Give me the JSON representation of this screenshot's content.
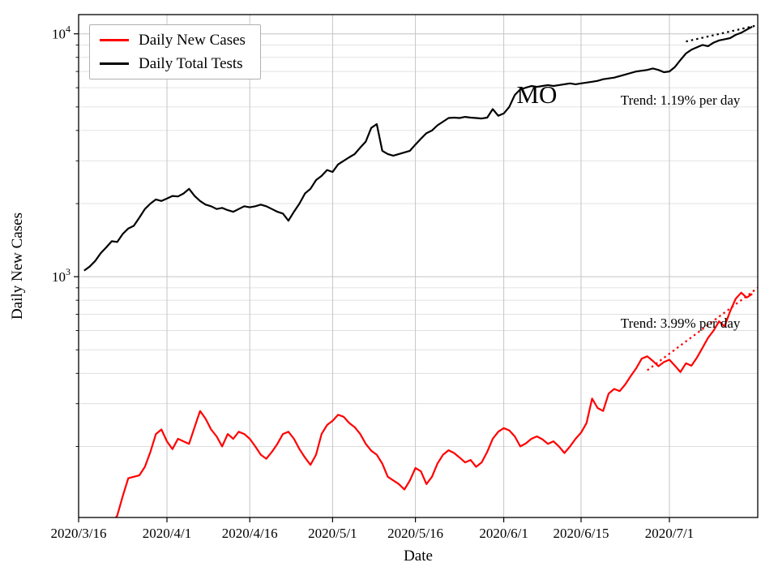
{
  "figure": {
    "xlabel": "Date",
    "ylabel": "Daily New Cases"
  },
  "legend": {
    "items": [
      {
        "label": "Daily New Cases",
        "color": "#ff0000"
      },
      {
        "label": "Daily Total Tests",
        "color": "#000000"
      }
    ]
  },
  "annotations": [
    {
      "name": "state-label",
      "text": "MO",
      "day": 83,
      "value": 5600,
      "font_size": 31
    },
    {
      "name": "trend-tests",
      "text": "Trend: 1.19% per day",
      "day": 109,
      "value": 5300,
      "font_size": 17
    },
    {
      "name": "trend-cases",
      "text": "Trend: 3.99% per day",
      "day": 109,
      "value": 640,
      "font_size": 17
    }
  ],
  "chart_data": {
    "type": "line",
    "title": "",
    "xlabel": "Date",
    "ylabel": "Daily New Cases",
    "x_axis": {
      "unit": "days since 2020/3/16",
      "min": 0,
      "max": 123,
      "ticks": [
        {
          "day": 0,
          "label": "2020/3/16"
        },
        {
          "day": 16,
          "label": "2020/4/1"
        },
        {
          "day": 31,
          "label": "2020/4/16"
        },
        {
          "day": 46,
          "label": "2020/5/1"
        },
        {
          "day": 61,
          "label": "2020/5/16"
        },
        {
          "day": 77,
          "label": "2020/6/1"
        },
        {
          "day": 91,
          "label": "2020/6/15"
        },
        {
          "day": 107,
          "label": "2020/7/1"
        }
      ]
    },
    "y_axis": {
      "scale": "log",
      "min": 102,
      "max": 12000,
      "major_ticks": [
        {
          "value": 1000,
          "exp": 3
        },
        {
          "value": 10000,
          "exp": 4
        }
      ]
    },
    "grid": {
      "major_color": "#c4c4c4",
      "minor_color": "#d9d9d9"
    },
    "series": [
      {
        "name": "Daily New Cases",
        "color": "#ff0000",
        "width": 2.2,
        "start_day": 4,
        "values": [
          85,
          90,
          96,
          104,
          125,
          148,
          150,
          152,
          165,
          190,
          225,
          235,
          210,
          195,
          215,
          210,
          205,
          240,
          280,
          260,
          235,
          220,
          200,
          225,
          215,
          230,
          225,
          215,
          200,
          185,
          178,
          190,
          205,
          225,
          230,
          215,
          195,
          180,
          168,
          185,
          225,
          245,
          255,
          270,
          265,
          250,
          240,
          225,
          205,
          192,
          185,
          170,
          150,
          145,
          140,
          133,
          145,
          163,
          158,
          140,
          150,
          170,
          185,
          193,
          188,
          180,
          172,
          176,
          165,
          172,
          190,
          215,
          230,
          238,
          233,
          220,
          200,
          206,
          215,
          220,
          214,
          205,
          210,
          200,
          188,
          200,
          215,
          228,
          250,
          315,
          288,
          280,
          330,
          345,
          338,
          360,
          390,
          420,
          460,
          470,
          450,
          428,
          445,
          455,
          430,
          405,
          440,
          430,
          465,
          510,
          560,
          600,
          655,
          625,
          720,
          810,
          860,
          820,
          850
        ]
      },
      {
        "name": "Daily Total Tests",
        "color": "#000000",
        "width": 2.2,
        "start_day": 1,
        "values": [
          1060,
          1100,
          1160,
          1250,
          1320,
          1400,
          1390,
          1500,
          1580,
          1620,
          1750,
          1900,
          2000,
          2080,
          2050,
          2100,
          2150,
          2140,
          2200,
          2300,
          2150,
          2050,
          1980,
          1950,
          1900,
          1920,
          1880,
          1850,
          1900,
          1950,
          1930,
          1950,
          1980,
          1950,
          1900,
          1850,
          1820,
          1700,
          1850,
          2000,
          2200,
          2300,
          2500,
          2600,
          2750,
          2700,
          2900,
          3000,
          3100,
          3200,
          3400,
          3600,
          4100,
          4250,
          3300,
          3200,
          3150,
          3200,
          3250,
          3300,
          3500,
          3700,
          3900,
          4000,
          4200,
          4350,
          4500,
          4520,
          4500,
          4550,
          4520,
          4500,
          4480,
          4520,
          4900,
          4600,
          4700,
          5000,
          5600,
          5900,
          6000,
          6100,
          6050,
          6100,
          6150,
          6100,
          6150,
          6200,
          6250,
          6200,
          6250,
          6300,
          6350,
          6400,
          6500,
          6550,
          6600,
          6700,
          6800,
          6900,
          7000,
          7050,
          7100,
          7200,
          7100,
          6950,
          7000,
          7300,
          7800,
          8300,
          8600,
          8800,
          9000,
          8900,
          9200,
          9400,
          9500,
          9600,
          9900,
          10100,
          10400,
          10700
        ]
      }
    ],
    "trend_lines": [
      {
        "name": "Daily Total Tests trend",
        "label": "Trend: 1.19% per day",
        "rate_pct_per_day": 1.19,
        "color": "#000000",
        "points": [
          [
            110,
            9300
          ],
          [
            123,
            10850
          ]
        ]
      },
      {
        "name": "Daily New Cases trend",
        "label": "Trend: 3.99% per day",
        "rate_pct_per_day": 3.99,
        "color": "#ff0000",
        "points": [
          [
            103,
            412
          ],
          [
            123,
            900
          ]
        ]
      }
    ]
  }
}
